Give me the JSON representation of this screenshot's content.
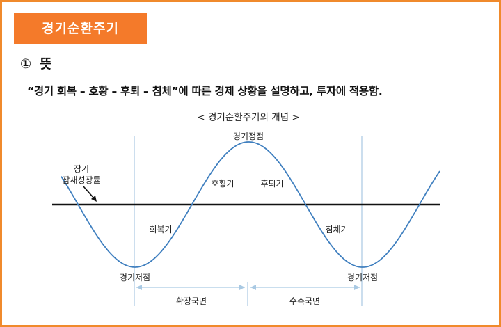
{
  "header": {
    "badge": "경기순환주기"
  },
  "section": {
    "number": "①",
    "title": "뜻"
  },
  "description": "“경기 회복 – 호황 – 후퇴 – 침체”에 따른 경제 상황을 설명하고, 투자에 적용함.",
  "diagram": {
    "title": "< 경기순환주기의 개념 >",
    "trend_label_1": "장기",
    "trend_label_2": "잠재성장률",
    "peak": "경기정점",
    "expansion_phase": "호황기",
    "recession_phase": "후퇴기",
    "recovery_phase": "회복기",
    "contraction_phase": "침체기",
    "trough_left": "경기저점",
    "trough_right": "경기저점",
    "expansion_span": "확장국면",
    "contraction_span": "수축국면"
  },
  "colors": {
    "accent": "#f47a2a",
    "frame": "#f08a2c",
    "curve": "#3f7fbf",
    "guide": "#a9c9e3"
  }
}
